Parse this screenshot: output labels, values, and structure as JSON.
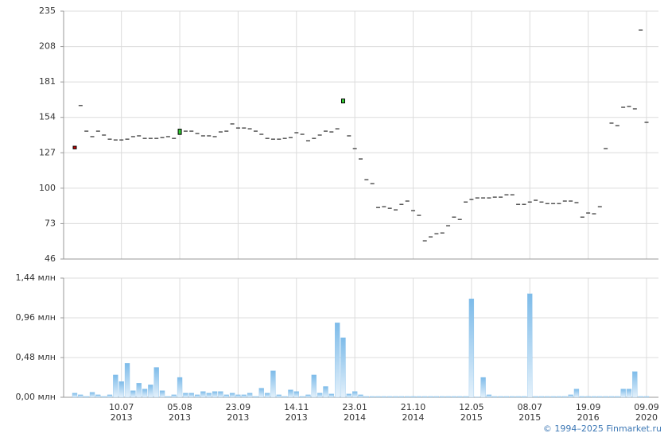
{
  "chart_data": [
    {
      "type": "candlestick",
      "open": [
        132,
        163,
        143.5,
        139.3,
        143.5,
        140.5,
        137.4,
        136.8,
        136.8,
        137.4,
        139.3,
        139.9,
        138,
        138,
        138,
        138.6,
        139.3,
        138,
        141,
        143.5,
        143.5,
        141.7,
        139.9,
        139.9,
        139.3,
        142.9,
        143.5,
        149,
        145.9,
        145.9,
        145.3,
        143.5,
        141.1,
        138,
        137.4,
        137.4,
        138,
        138.6,
        142.3,
        141.1,
        136.2,
        138,
        140.5,
        143.5,
        142.9,
        145.3,
        165,
        139.9,
        130.2,
        122.3,
        106.5,
        103.5,
        85.3,
        85.9,
        84.7,
        83.5,
        87.7,
        90.2,
        82.9,
        79.3,
        59.9,
        62.9,
        65.3,
        65.9,
        71.4,
        78,
        76.2,
        89.5,
        91.4,
        92.6,
        92.6,
        92.6,
        93.2,
        93.2,
        95,
        95,
        87.7,
        87.7,
        89.5,
        90.8,
        89.5,
        88.3,
        88.3,
        88.3,
        90.2,
        90.2,
        89,
        78,
        81.1,
        80.5,
        85.9,
        130.2,
        149.6,
        147.7,
        161.7,
        162.3,
        160.5,
        220.5,
        150.2
      ],
      "close": [
        130,
        163,
        143.5,
        139.3,
        143.5,
        140.5,
        137.4,
        136.8,
        136.8,
        137.4,
        139.3,
        139.9,
        138,
        138,
        138,
        138.6,
        139.3,
        138,
        145,
        143.5,
        143.5,
        141.7,
        139.9,
        139.9,
        139.3,
        142.9,
        143.5,
        149,
        145.9,
        145.9,
        145.3,
        143.5,
        141.1,
        138,
        137.4,
        137.4,
        138,
        138.6,
        142.3,
        141.1,
        136.2,
        138,
        140.5,
        143.5,
        142.9,
        145.3,
        168,
        139.9,
        130.2,
        122.3,
        106.5,
        103.5,
        85.3,
        85.9,
        84.7,
        83.5,
        87.7,
        90.2,
        82.9,
        79.3,
        59.9,
        62.9,
        65.3,
        65.9,
        71.4,
        78,
        76.2,
        89.5,
        91.4,
        92.6,
        92.6,
        92.6,
        93.2,
        93.2,
        95,
        95,
        87.7,
        87.7,
        89.5,
        90.8,
        89.5,
        88.3,
        88.3,
        88.3,
        90.2,
        90.2,
        89,
        78,
        81.1,
        80.5,
        85.9,
        130.2,
        149.6,
        147.7,
        161.7,
        162.3,
        160.5,
        220.5,
        150.2
      ],
      "up_color": "#33cc33",
      "down_color": "#cc0000",
      "flat_color": "#000000",
      "ylim": [
        46,
        235
      ],
      "yticks": [
        46,
        73,
        100,
        127,
        154,
        181,
        208,
        235
      ],
      "grid": true
    },
    {
      "type": "bar",
      "color": "#7dbbe9",
      "categories": [
        null,
        null,
        null,
        null,
        null,
        null,
        null,
        null,
        "10.07\n2013",
        null,
        null,
        null,
        null,
        null,
        null,
        null,
        null,
        null,
        "05.08\n2013",
        null,
        null,
        null,
        null,
        null,
        null,
        null,
        null,
        null,
        "23.09\n2013",
        null,
        null,
        null,
        null,
        null,
        null,
        null,
        null,
        null,
        "14.11\n2013",
        null,
        null,
        null,
        null,
        null,
        null,
        null,
        null,
        null,
        "23.01\n2014",
        null,
        null,
        null,
        null,
        null,
        null,
        null,
        null,
        null,
        "21.10\n2014",
        null,
        null,
        null,
        null,
        null,
        null,
        null,
        null,
        null,
        "12.05\n2015",
        null,
        null,
        null,
        null,
        null,
        null,
        null,
        null,
        null,
        "08.07\n2015",
        null,
        null,
        null,
        null,
        null,
        null,
        null,
        null,
        null,
        "19.09\n2016",
        null,
        null,
        null,
        null,
        null,
        null,
        null,
        null,
        null,
        "09.09\n2020"
      ],
      "values": [
        0.05,
        0.03,
        0.01,
        0.06,
        0.03,
        0.01,
        0.03,
        0.27,
        0.19,
        0.41,
        0.08,
        0.17,
        0.1,
        0.15,
        0.36,
        0.08,
        0.01,
        0.03,
        0.24,
        0.05,
        0.05,
        0.03,
        0.07,
        0.05,
        0.07,
        0.07,
        0.03,
        0.05,
        0.03,
        0.03,
        0.05,
        0.01,
        0.11,
        0.05,
        0.32,
        0.03,
        0.01,
        0.09,
        0.07,
        0.01,
        0.03,
        0.27,
        0.05,
        0.13,
        0.04,
        0.9,
        0.72,
        0.04,
        0.07,
        0.03,
        0.01,
        0.01,
        0.01,
        0.01,
        0.01,
        0.01,
        0.01,
        0.01,
        0.01,
        0.01,
        0.01,
        0.01,
        0.01,
        0.01,
        0.01,
        0.01,
        0.01,
        0.01,
        1.19,
        0.003,
        0.24,
        0.03,
        0.01,
        0.01,
        0.01,
        0.01,
        0.01,
        0.01,
        1.25,
        0.01,
        0.01,
        0.01,
        0.01,
        0.01,
        0.01,
        0.03,
        0.1,
        0.01,
        0.01,
        0.01,
        0.01,
        0.01,
        0.01,
        0.01,
        0.1,
        0.1,
        0.31,
        0.01,
        0.01
      ],
      "ylim": [
        0,
        1.44
      ],
      "yticks": [
        {
          "value": 0,
          "label": "0,00 млн"
        },
        {
          "value": 0.48,
          "label": "0,48 млн"
        },
        {
          "value": 0.96,
          "label": "0,96 млн"
        },
        {
          "value": 1.44,
          "label": "1,44 млн"
        }
      ],
      "grid": true
    }
  ],
  "footer": "© 1994–2025 Finmarket.ru"
}
